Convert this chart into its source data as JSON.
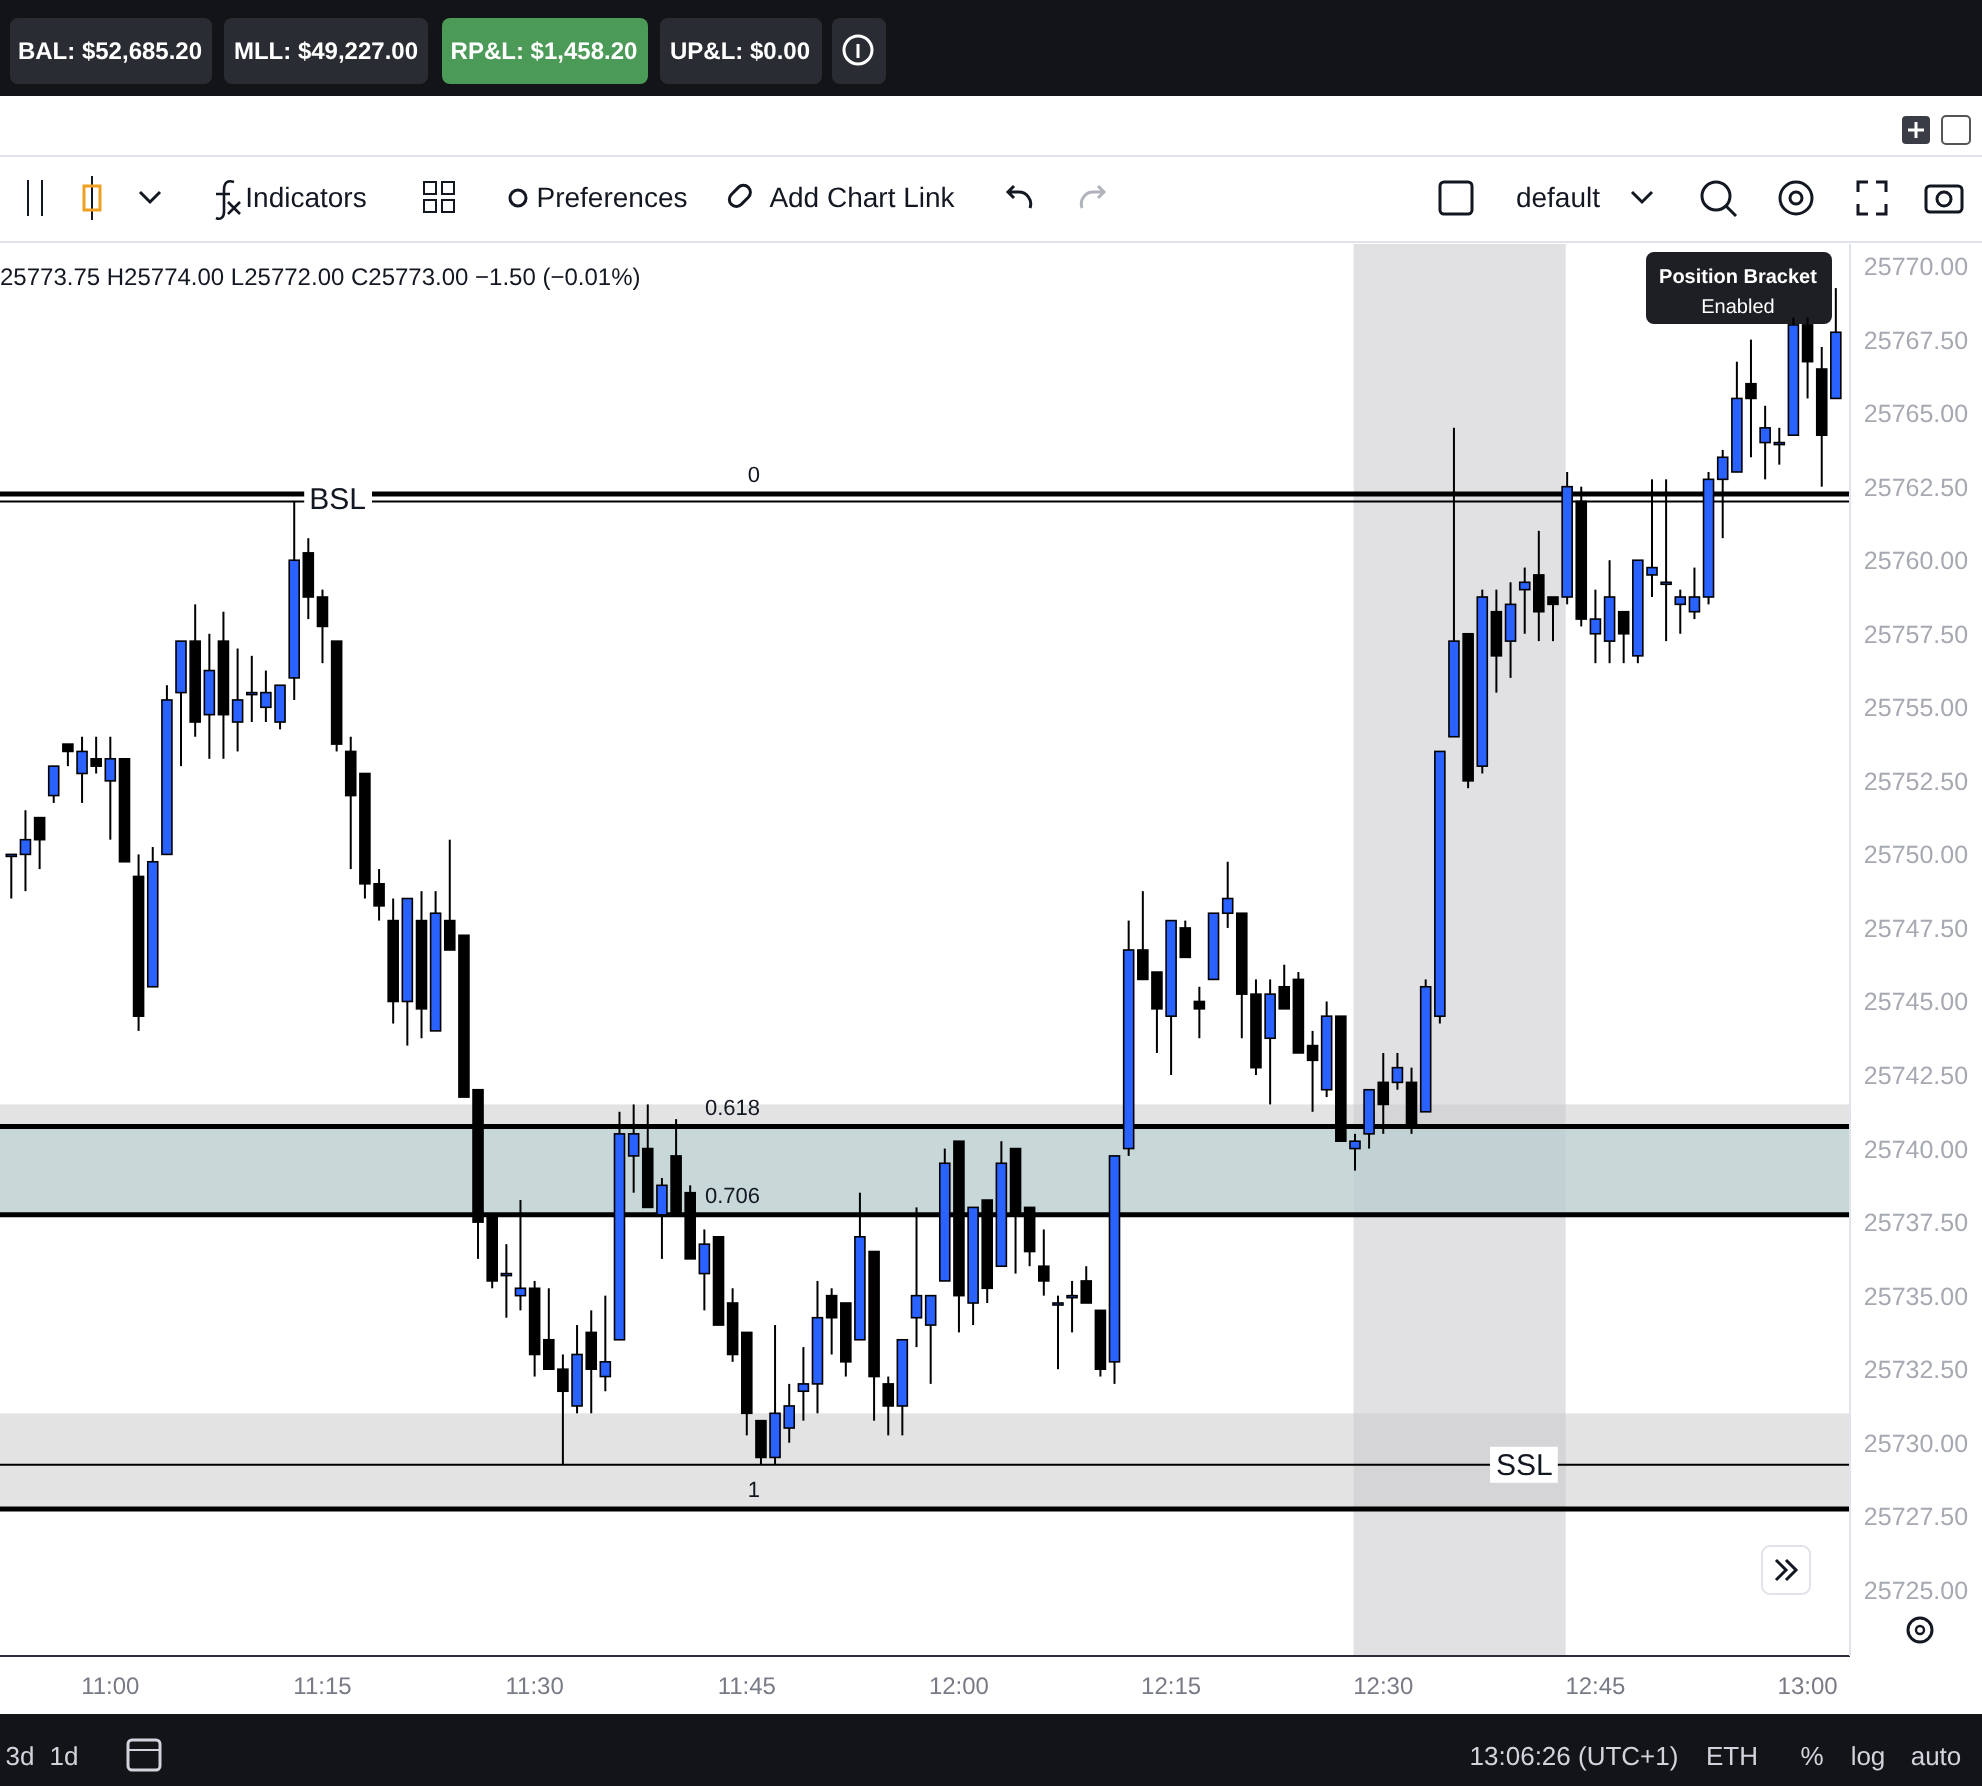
{
  "chart_data": {
    "type": "candlestick",
    "x": [
      10.8833,
      10.9,
      10.9167,
      10.9333,
      10.95,
      10.9667,
      10.9833,
      11,
      11.0167,
      11.0333,
      11.05,
      11.0667,
      11.0833,
      11.1,
      11.1167,
      11.1333,
      11.15,
      11.1667,
      11.1833,
      11.2,
      11.2167,
      11.2333,
      11.25,
      11.2667,
      11.2833,
      11.3,
      11.3167,
      11.3333,
      11.35,
      11.3667,
      11.3833,
      11.4,
      11.4167,
      11.4333,
      11.45,
      11.4667,
      11.4833,
      11.5,
      11.5167,
      11.5333,
      11.55,
      11.5667,
      11.5833,
      11.6,
      11.6167,
      11.6333,
      11.65,
      11.6667,
      11.6833,
      11.7,
      11.7167,
      11.7333,
      11.75,
      11.7667,
      11.7833,
      11.8,
      11.8167,
      11.8333,
      11.85,
      11.8667,
      11.8833,
      11.9,
      11.9167,
      11.9333,
      11.95,
      11.9667,
      11.9833,
      12,
      12.0167,
      12.0333,
      12.05,
      12.0667,
      12.0833,
      12.1,
      12.1167,
      12.1333,
      12.15,
      12.1667,
      12.1833,
      12.2,
      12.2167,
      12.2333,
      12.25,
      12.2667,
      12.2833,
      12.3,
      12.3167,
      12.3333,
      12.35,
      12.3667,
      12.3833,
      12.4,
      12.4167,
      12.4333,
      12.45,
      12.4667,
      12.4833,
      12.5,
      12.5167,
      12.5333,
      12.55,
      12.5667,
      12.5833,
      12.6,
      12.6167,
      12.6333,
      12.65,
      12.6667,
      12.6833,
      12.7,
      12.7167,
      12.7333,
      12.75,
      12.7667,
      12.7833,
      12.8,
      12.8167,
      12.8333,
      12.85,
      12.8667,
      12.8833,
      12.9,
      12.9167,
      12.9333,
      12.95,
      12.9667,
      12.9833,
      13,
      13.0167,
      13.0333
    ],
    "ohlc": [
      [
        25750,
        25750,
        25748.5,
        25750
      ],
      [
        25750,
        25751.5,
        25748.75,
        25750.5
      ],
      [
        25751.25,
        25751.25,
        25749.5,
        25750.5
      ],
      [
        25752,
        25753,
        25751.75,
        25753
      ],
      [
        25753.75,
        25753.75,
        25753,
        25753.5
      ],
      [
        25752.75,
        25754,
        25751.75,
        25753.5
      ],
      [
        25753.25,
        25754,
        25752.75,
        25753
      ],
      [
        25752.5,
        25754,
        25750.5,
        25753.25
      ],
      [
        25753.25,
        25753.25,
        25749.75,
        25749.75
      ],
      [
        25749.25,
        25750,
        25744,
        25744.5
      ],
      [
        25745.5,
        25750.25,
        25745.5,
        25749.75
      ],
      [
        25750,
        25755.75,
        25750,
        25755.25
      ],
      [
        25755.5,
        25757.25,
        25753,
        25757.25
      ],
      [
        25757.25,
        25758.5,
        25754,
        25754.5
      ],
      [
        25754.75,
        25757.5,
        25753.25,
        25756.25
      ],
      [
        25757.25,
        25758.25,
        25753.25,
        25754.75
      ],
      [
        25754.5,
        25757,
        25753.5,
        25755.25
      ],
      [
        25755.5,
        25756.75,
        25754.5,
        25755.5
      ],
      [
        25755,
        25756.25,
        25754.5,
        25755.5
      ],
      [
        25754.5,
        25755.75,
        25754.25,
        25755.75
      ],
      [
        25756,
        25762,
        25755.25,
        25760
      ],
      [
        25760.25,
        25760.75,
        25758,
        25758.75
      ],
      [
        25758.75,
        25759,
        25756.5,
        25757.75
      ],
      [
        25757.25,
        25757.25,
        25753.5,
        25753.75
      ],
      [
        25753.5,
        25754,
        25749.5,
        25752
      ],
      [
        25752.75,
        25752.75,
        25748.5,
        25749
      ],
      [
        25749,
        25749.5,
        25747.75,
        25748.25
      ],
      [
        25747.75,
        25748.5,
        25744.25,
        25745
      ],
      [
        25745,
        25748.5,
        25743.5,
        25748.5
      ],
      [
        25747.75,
        25748.75,
        25743.75,
        25744.75
      ],
      [
        25744,
        25748.75,
        25744,
        25748
      ],
      [
        25747.75,
        25750.5,
        25746.75,
        25746.75
      ],
      [
        25747.25,
        25747.25,
        25741.75,
        25741.75
      ],
      [
        25742,
        25742,
        25736.25,
        25737.5
      ],
      [
        25737.75,
        25737.75,
        25735.25,
        25735.5
      ],
      [
        25735.75,
        25736.75,
        25734.25,
        25735.75
      ],
      [
        25735,
        25738.25,
        25734.5,
        25735.25
      ],
      [
        25735.25,
        25735.5,
        25732.25,
        25733
      ],
      [
        25733.5,
        25735.25,
        25732.5,
        25732.5
      ],
      [
        25732.5,
        25733,
        25729.25,
        25731.75
      ],
      [
        25731.25,
        25734,
        25731,
        25733
      ],
      [
        25733.75,
        25734.5,
        25731,
        25732.5
      ],
      [
        25732.25,
        25735,
        25731.75,
        25732.75
      ],
      [
        25733.5,
        25741.25,
        25733.5,
        25740.5
      ],
      [
        25739.75,
        25741.5,
        25738.5,
        25740.5
      ],
      [
        25740,
        25741.5,
        25738,
        25738
      ],
      [
        25737.75,
        25739,
        25736.25,
        25738.75
      ],
      [
        25739.75,
        25741,
        25737.75,
        25737.75
      ],
      [
        25738.5,
        25738.75,
        25736.25,
        25736.25
      ],
      [
        25735.75,
        25737.25,
        25734.5,
        25736.75
      ],
      [
        25737,
        25737,
        25734,
        25734
      ],
      [
        25734.75,
        25735.25,
        25732.75,
        25733
      ],
      [
        25733.75,
        25733.75,
        25730.25,
        25731
      ],
      [
        25730.75,
        25730.75,
        25729.25,
        25729.5
      ],
      [
        25729.5,
        25734,
        25729.25,
        25731
      ],
      [
        25730.5,
        25732,
        25730,
        25731.25
      ],
      [
        25731.75,
        25733.25,
        25730.75,
        25732
      ],
      [
        25732,
        25735.5,
        25731,
        25734.25
      ],
      [
        25735,
        25735.25,
        25733,
        25734.25
      ],
      [
        25734.75,
        25734.75,
        25732.25,
        25732.75
      ],
      [
        25733.5,
        25738.5,
        25733.5,
        25737
      ],
      [
        25736.5,
        25736.5,
        25730.75,
        25732.25
      ],
      [
        25732,
        25732.25,
        25730.25,
        25731.25
      ],
      [
        25731.25,
        25733.5,
        25730.25,
        25733.5
      ],
      [
        25734.25,
        25738,
        25733.25,
        25735
      ],
      [
        25734,
        25735,
        25732,
        25735
      ],
      [
        25735.5,
        25740,
        25735.5,
        25739.5
      ],
      [
        25740.25,
        25740.25,
        25733.75,
        25735
      ],
      [
        25734.75,
        25738,
        25734,
        25738
      ],
      [
        25738.25,
        25738.25,
        25734.75,
        25735.25
      ],
      [
        25736,
        25740.25,
        25736,
        25739.5
      ],
      [
        25740,
        25740,
        25735.75,
        25737.75
      ],
      [
        25738,
        25738,
        25736,
        25736.5
      ],
      [
        25736,
        25737.25,
        25735,
        25735.5
      ],
      [
        25734.75,
        25735,
        25732.5,
        25734.75
      ],
      [
        25735,
        25735.5,
        25733.75,
        25735
      ],
      [
        25735.5,
        25736,
        25734.75,
        25734.75
      ],
      [
        25734.5,
        25734.5,
        25732.25,
        25732.5
      ],
      [
        25732.75,
        25739.75,
        25732,
        25739.75
      ],
      [
        25740,
        25747.75,
        25739.75,
        25746.75
      ],
      [
        25746.75,
        25748.75,
        25745.75,
        25745.75
      ],
      [
        25746,
        25746,
        25743.25,
        25744.75
      ],
      [
        25744.5,
        25747.75,
        25742.5,
        25747.75
      ],
      [
        25747.5,
        25747.75,
        25746.5,
        25746.5
      ],
      [
        25745,
        25745.5,
        25743.75,
        25744.75
      ],
      [
        25745.75,
        25748,
        25745.75,
        25748
      ],
      [
        25748,
        25749.75,
        25747.5,
        25748.5
      ],
      [
        25748,
        25748,
        25743.75,
        25745.25
      ],
      [
        25745.25,
        25745.75,
        25742.5,
        25742.75
      ],
      [
        25743.75,
        25745.75,
        25741.5,
        25745.25
      ],
      [
        25745.5,
        25746.25,
        25744.75,
        25744.75
      ],
      [
        25745.75,
        25746,
        25743.25,
        25743.25
      ],
      [
        25743.5,
        25744,
        25741.25,
        25743
      ],
      [
        25742,
        25745,
        25741.75,
        25744.5
      ],
      [
        25744.5,
        25744.5,
        25740.25,
        25740.25
      ],
      [
        25740,
        25740.5,
        25739.25,
        25740.25
      ],
      [
        25740.5,
        25742,
        25740,
        25742
      ],
      [
        25742.25,
        25743.25,
        25740.5,
        25741.5
      ],
      [
        25742.25,
        25743.25,
        25742,
        25742.75
      ],
      [
        25742.25,
        25742.75,
        25740.5,
        25740.75
      ],
      [
        25741.25,
        25745.75,
        25741.25,
        25745.5
      ],
      [
        25744.5,
        25753.5,
        25744.25,
        25753.5
      ],
      [
        25754,
        25764.5,
        25754,
        25757.25
      ],
      [
        25757.5,
        25757.5,
        25752.25,
        25752.5
      ],
      [
        25753,
        25759,
        25752.75,
        25758.75
      ],
      [
        25758.25,
        25759,
        25755.5,
        25756.75
      ],
      [
        25757.25,
        25759.25,
        25756,
        25758.5
      ],
      [
        25759,
        25759.75,
        25757.5,
        25759.25
      ],
      [
        25759.5,
        25761,
        25757.25,
        25758.25
      ],
      [
        25758.75,
        25758.75,
        25757.25,
        25758.5
      ],
      [
        25758.75,
        25763,
        25758.5,
        25762.5
      ],
      [
        25762,
        25762.5,
        25757.75,
        25758
      ],
      [
        25757.5,
        25759,
        25756.5,
        25758
      ],
      [
        25757.25,
        25760,
        25756.5,
        25758.75
      ],
      [
        25758.25,
        25758.25,
        25756.5,
        25757.5
      ],
      [
        25756.75,
        25760,
        25756.5,
        25760
      ],
      [
        25759.5,
        25762.75,
        25758.75,
        25759.75
      ],
      [
        25759.25,
        25762.75,
        25757.25,
        25759.25
      ],
      [
        25758.5,
        25759,
        25757.5,
        25758.75
      ],
      [
        25758.25,
        25759.75,
        25758,
        25758.75
      ],
      [
        25758.75,
        25763,
        25758.5,
        25762.75
      ],
      [
        25762.75,
        25763.75,
        25760.75,
        25763.5
      ],
      [
        25763,
        25766.75,
        25763,
        25765.5
      ],
      [
        25766,
        25767.5,
        25763.5,
        25765.5
      ],
      [
        25764,
        25765.25,
        25762.75,
        25764.5
      ],
      [
        25764,
        25764.5,
        25763.25,
        25764
      ],
      [
        25764.25,
        25768.25,
        25764.25,
        25768
      ],
      [
        25768,
        25768.25,
        25765.5,
        25766.75
      ],
      [
        25766.5,
        25767.25,
        25762.5,
        25764.25
      ],
      [
        25765.5,
        25769.25,
        25765.5,
        25767.75
      ]
    ],
    "xlim": [
      10.87,
      13.05
    ],
    "ylim": [
      25722.75,
      25770.75
    ],
    "xticks": [
      {
        "value": 11,
        "label": "11:00"
      },
      {
        "value": 11.25,
        "label": "11:15"
      },
      {
        "value": 11.5,
        "label": "11:30"
      },
      {
        "value": 11.75,
        "label": "11:45"
      },
      {
        "value": 12,
        "label": "12:00"
      },
      {
        "value": 12.25,
        "label": "12:15"
      },
      {
        "value": 12.5,
        "label": "12:30"
      },
      {
        "value": 12.75,
        "label": "12:45"
      },
      {
        "value": 13,
        "label": "13:00"
      }
    ],
    "yticks": [
      {
        "value": 25725,
        "label": "25725.00"
      },
      {
        "value": 25727.5,
        "label": "25727.50"
      },
      {
        "value": 25730,
        "label": "25730.00"
      },
      {
        "value": 25732.5,
        "label": "25732.50"
      },
      {
        "value": 25735,
        "label": "25735.00"
      },
      {
        "value": 25737.5,
        "label": "25737.50"
      },
      {
        "value": 25740,
        "label": "25740.00"
      },
      {
        "value": 25742.5,
        "label": "25742.50"
      },
      {
        "value": 25745,
        "label": "25745.00"
      },
      {
        "value": 25747.5,
        "label": "25747.50"
      },
      {
        "value": 25750,
        "label": "25750.00"
      },
      {
        "value": 25752.5,
        "label": "25752.50"
      },
      {
        "value": 25755,
        "label": "25755.00"
      },
      {
        "value": 25757.5,
        "label": "25757.50"
      },
      {
        "value": 25760,
        "label": "25760.00"
      },
      {
        "value": 25762.5,
        "label": "25762.50"
      },
      {
        "value": 25765,
        "label": "25765.00"
      },
      {
        "value": 25767.5,
        "label": "25767.50"
      },
      {
        "value": 25770,
        "label": "25770.00"
      }
    ],
    "bands": [
      {
        "axis": "x",
        "from": 12.465,
        "to": 12.715,
        "color": "#d9dadd"
      },
      {
        "axis": "y",
        "from": 25737.75,
        "to": 25741.5,
        "color": "#cccccc"
      },
      {
        "axis": "y",
        "from": 25737.75,
        "to": 25740.75,
        "color": "#b3cfd2"
      },
      {
        "axis": "y",
        "from": 25727.75,
        "to": 25731,
        "color": "#cccccc"
      }
    ],
    "ref_lines": [
      {
        "axis": "y",
        "value": 25762,
        "label": "BSL",
        "color": "#000000",
        "line_style": "solid"
      },
      {
        "axis": "y",
        "value": 25762.25,
        "color": "#000000"
      },
      {
        "axis": "y",
        "value": 25740.75,
        "color": "#000000"
      },
      {
        "axis": "y",
        "value": 25737.75,
        "color": "#000000"
      },
      {
        "axis": "y",
        "value": 25727.75,
        "color": "#000000"
      },
      {
        "axis": "y",
        "value": 25729.25,
        "label": "SSL",
        "color": "#000000",
        "line_style": "solid"
      }
    ],
    "annotations": [
      "BAL: $52,685.20",
      "MLL: $49,227.00",
      "RP&L: $1,458.20",
      "UP&L: $0.00",
      "Indicators",
      "Preferences",
      "Add Chart Link",
      "default",
      "25773.75 H25774.00 L25772.00 C25773.00 −1.50 (−0.01%)",
      "Position Bracket",
      "Enabled",
      "3d",
      "1d",
      "13:06:26 (UTC+1)",
      "ETH",
      "%",
      "log",
      "auto",
      {
        "text": "0",
        "y": 25762.25
      },
      {
        "text": "0.618",
        "y": 25740.75
      },
      {
        "text": "0.706",
        "y": 25737.75
      },
      {
        "text": "1",
        "y": 25727.75
      }
    ]
  }
}
